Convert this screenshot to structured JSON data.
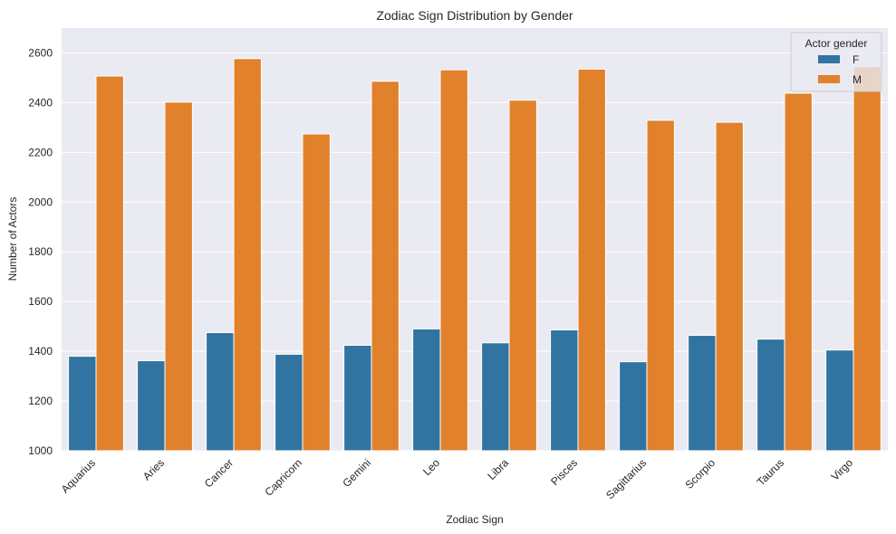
{
  "chart_data": {
    "type": "bar",
    "title": "Zodiac Sign Distribution by Gender",
    "xlabel": "Zodiac Sign",
    "ylabel": "Number of Actors",
    "ylim": [
      1000,
      2700
    ],
    "yticks": [
      1000,
      1200,
      1400,
      1600,
      1800,
      2000,
      2200,
      2400,
      2600
    ],
    "grid": true,
    "legend": {
      "title": "Actor gender",
      "position": "top-right"
    },
    "categories": [
      "Aquarius",
      "Aries",
      "Cancer",
      "Capricorn",
      "Gemini",
      "Leo",
      "Libra",
      "Pisces",
      "Sagittarius",
      "Scorpio",
      "Taurus",
      "Virgo"
    ],
    "series": [
      {
        "name": "F",
        "color": "#3274a1",
        "values": [
          1380,
          1362,
          1475,
          1388,
          1424,
          1490,
          1434,
          1486,
          1358,
          1464,
          1449,
          1405
        ]
      },
      {
        "name": "M",
        "color": "#e1812c",
        "values": [
          2507,
          2402,
          2577,
          2274,
          2486,
          2532,
          2410,
          2535,
          2329,
          2321,
          2438,
          2545
        ]
      }
    ]
  }
}
